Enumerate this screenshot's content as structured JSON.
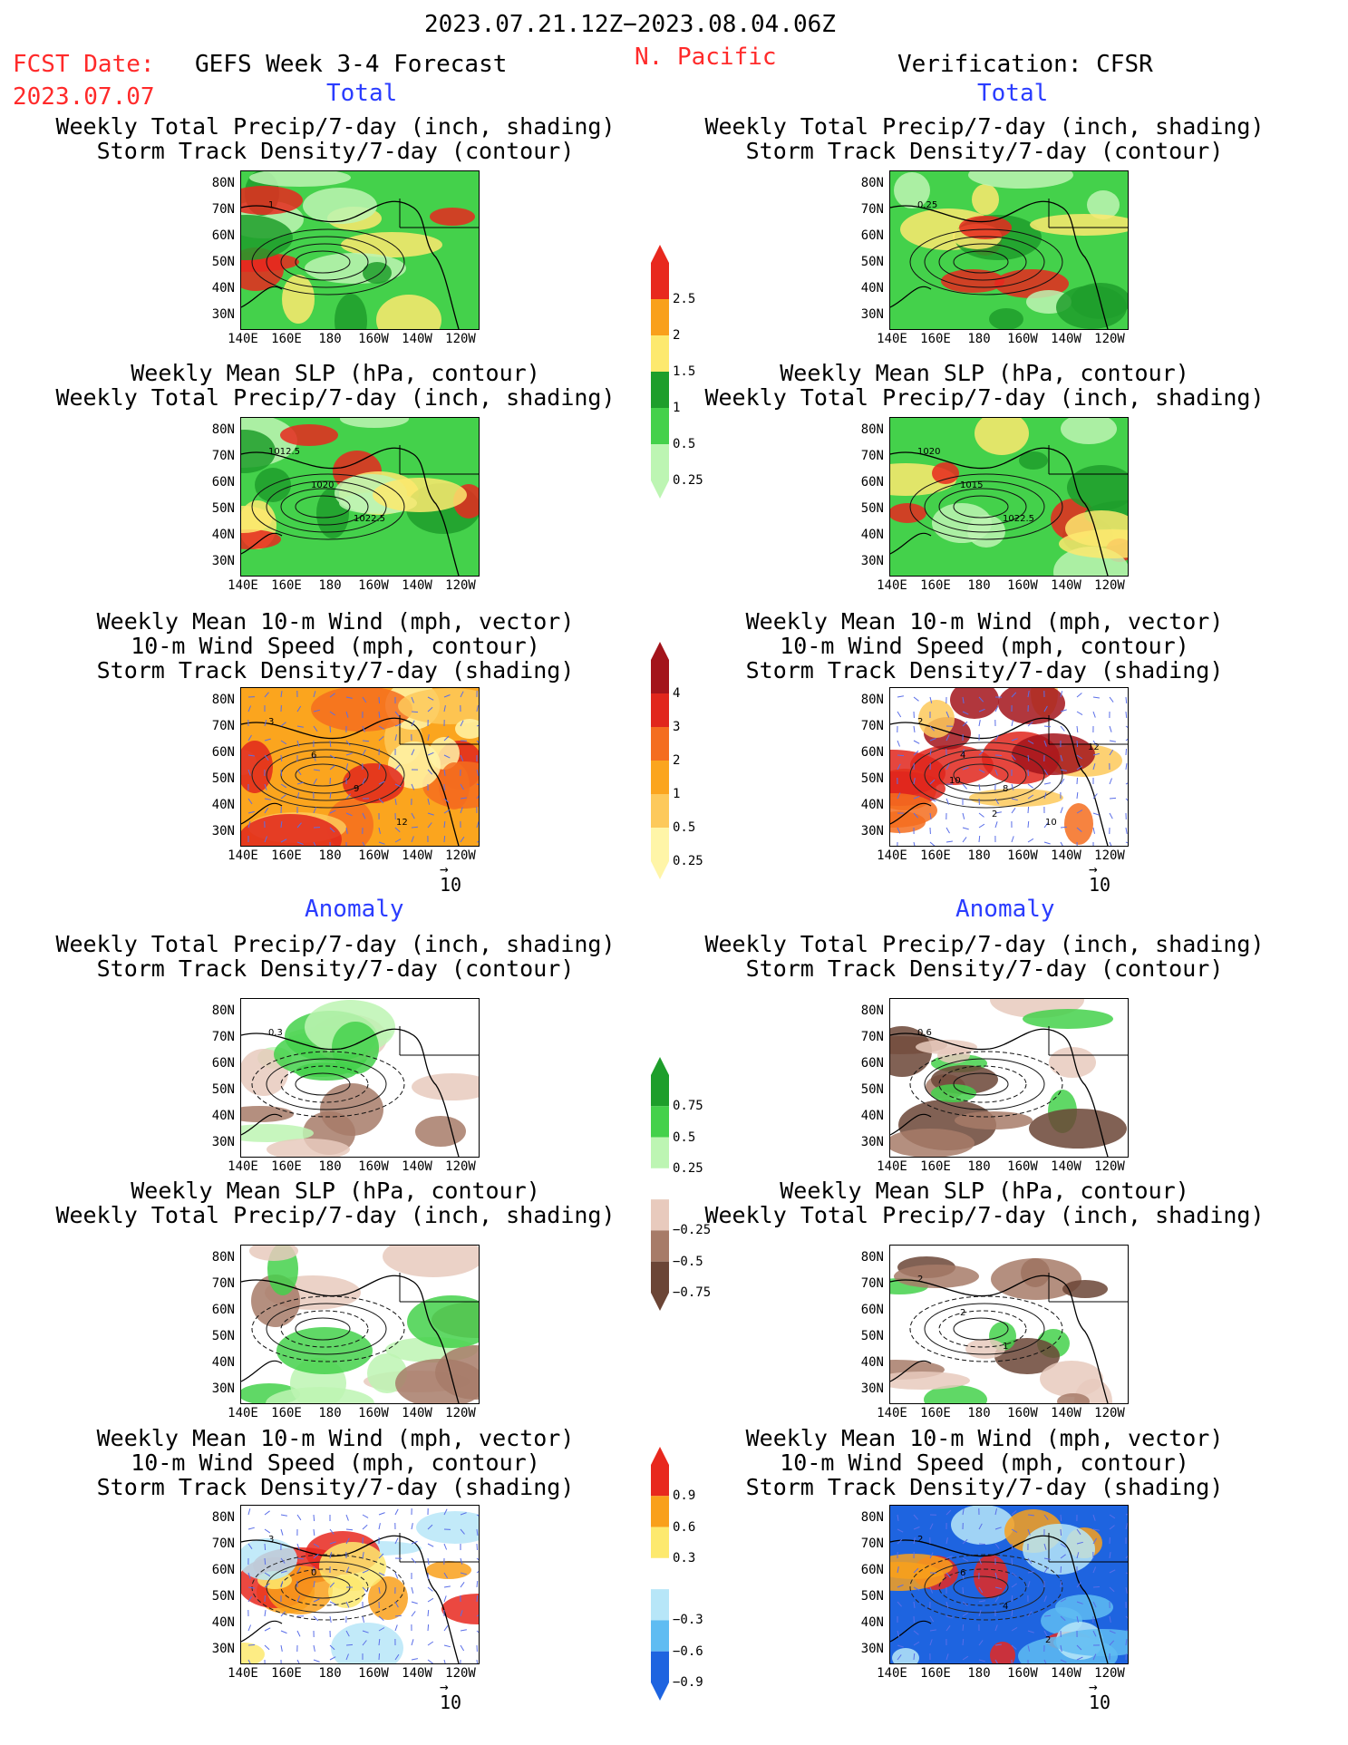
{
  "header": {
    "period": "2023.07.21.12Z−2023.08.04.06Z",
    "fcst_label": "FCST Date:",
    "fcst_date": "2023.07.07",
    "left_title": "GEFS Week 3-4 Forecast",
    "region": "N. Pacific",
    "right_title": "Verification: CFSR"
  },
  "sections": {
    "total": "Total",
    "anomaly": "Anomaly"
  },
  "panel_titles": {
    "precip_track": [
      "Weekly Total Precip/7-day (inch, shading)",
      "Storm Track Density/7-day (contour)"
    ],
    "slp_precip": [
      "Weekly Mean SLP (hPa, contour)",
      "Weekly Total Precip/7-day (inch, shading)"
    ],
    "wind_track": [
      "Weekly Mean 10-m Wind (mph, vector)",
      "10-m Wind Speed (mph, contour)",
      "Storm Track Density/7-day (shading)"
    ]
  },
  "axes": {
    "lat_labels": [
      "80N",
      "70N",
      "60N",
      "50N",
      "40N",
      "30N"
    ],
    "lon_labels": [
      "140E",
      "160E",
      "180",
      "160W",
      "140W",
      "120W"
    ]
  },
  "vector_ref": "10",
  "colorbars": {
    "precip_total": {
      "labels": [
        "2.5",
        "2",
        "1.5",
        "1",
        "0.5",
        "0.25"
      ],
      "colors": [
        "#e8281e",
        "#f9a01b",
        "#fde96e",
        "#1e9e2b",
        "#44d14b",
        "#bdf5b3"
      ]
    },
    "track_total": {
      "labels": [
        "4",
        "3",
        "2",
        "1",
        "0.5",
        "0.25"
      ],
      "colors": [
        "#a3141b",
        "#e1261c",
        "#f46d1f",
        "#fba51e",
        "#fdc95b",
        "#fff5a8"
      ]
    },
    "precip_anom": {
      "labels": [
        "0.75",
        "0.5",
        "0.25",
        "−0.25",
        "−0.5",
        "−0.75"
      ],
      "colors": [
        "#1e9e2b",
        "#44d14b",
        "#bdf5b3",
        "#ffffff",
        "#e8cabd",
        "#a77b68",
        "#6b4536"
      ]
    },
    "track_anom": {
      "labels": [
        "0.9",
        "0.6",
        "0.3",
        "−0.3",
        "−0.6",
        "−0.9"
      ],
      "colors": [
        "#e8281e",
        "#f9a01b",
        "#fde96e",
        "#ffffff",
        "#b7e6f8",
        "#5fbcf2",
        "#1e64e0"
      ]
    }
  },
  "contour_labels": {
    "fc_precip_total": [
      "1"
    ],
    "vf_precip_total": [
      "0.25"
    ],
    "fc_slp_total": [
      "1012.5",
      "1020",
      "1022.5"
    ],
    "vf_slp_total": [
      "1020",
      "1015",
      "1022.5"
    ],
    "fc_wind_total": [
      "3",
      "6",
      "9",
      "12"
    ],
    "vf_wind_total": [
      "2",
      "4",
      "8",
      "10",
      "12",
      "10",
      "2"
    ],
    "fc_precip_anom": [
      "0.3"
    ],
    "vf_precip_anom": [
      "0.6"
    ],
    "vf_slp_anom": [
      "2",
      "2",
      "1"
    ],
    "fc_wind_anom": [
      "3",
      "0"
    ],
    "vf_wind_anom": [
      "2",
      "6",
      "4",
      "2"
    ]
  }
}
